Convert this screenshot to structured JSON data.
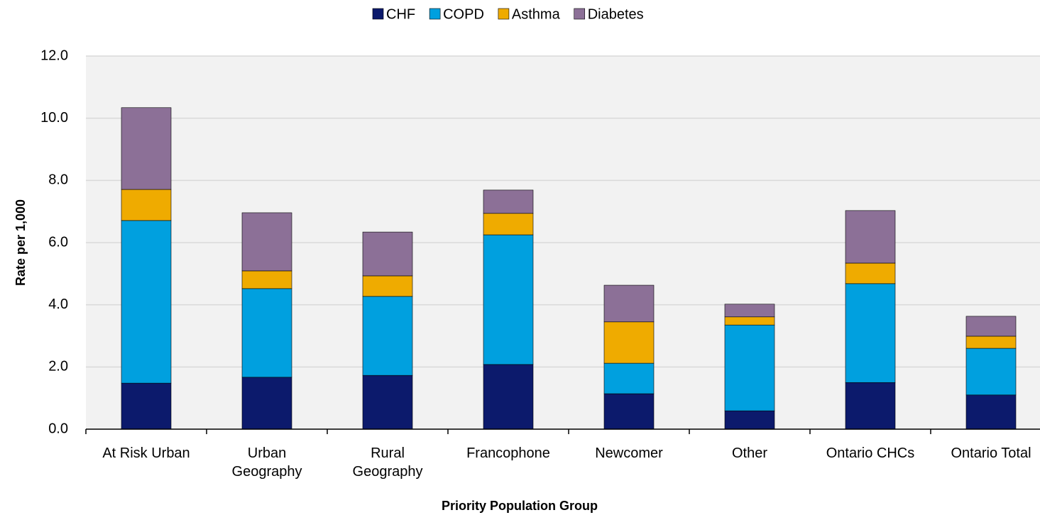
{
  "chart_data": {
    "type": "stacked_bar",
    "xlabel": "Priority Population Group",
    "ylabel": "Rate per 1,000",
    "categories": [
      "At Risk Urban",
      "Urban\nGeography",
      "Rural\nGeography",
      "Francophone",
      "Newcomer",
      "Other",
      "Ontario CHCs",
      "Ontario Total"
    ],
    "series": [
      {
        "name": "CHF",
        "color": "#0c1a6c",
        "values": [
          1.48,
          1.67,
          1.73,
          2.08,
          1.14,
          0.59,
          1.5,
          1.1
        ]
      },
      {
        "name": "COPD",
        "color": "#00a0df",
        "values": [
          5.23,
          2.85,
          2.54,
          4.17,
          0.98,
          2.76,
          3.18,
          1.5
        ]
      },
      {
        "name": "Asthma",
        "color": "#efab00",
        "values": [
          1.0,
          0.57,
          0.66,
          0.69,
          1.33,
          0.26,
          0.66,
          0.39
        ]
      },
      {
        "name": "Diabetes",
        "color": "#8c7097",
        "values": [
          2.63,
          1.87,
          1.41,
          0.75,
          1.18,
          0.41,
          1.69,
          0.64
        ]
      }
    ],
    "ylim": [
      0,
      12
    ],
    "yticks": [
      {
        "value": 0,
        "label": "0.0"
      },
      {
        "value": 2,
        "label": "2.0"
      },
      {
        "value": 4,
        "label": "4.0"
      },
      {
        "value": 6,
        "label": "6.0"
      },
      {
        "value": 8,
        "label": "8.0"
      },
      {
        "value": 10,
        "label": "10.0"
      },
      {
        "value": 12,
        "label": "12.0"
      }
    ],
    "grid": true,
    "legend": "top"
  }
}
